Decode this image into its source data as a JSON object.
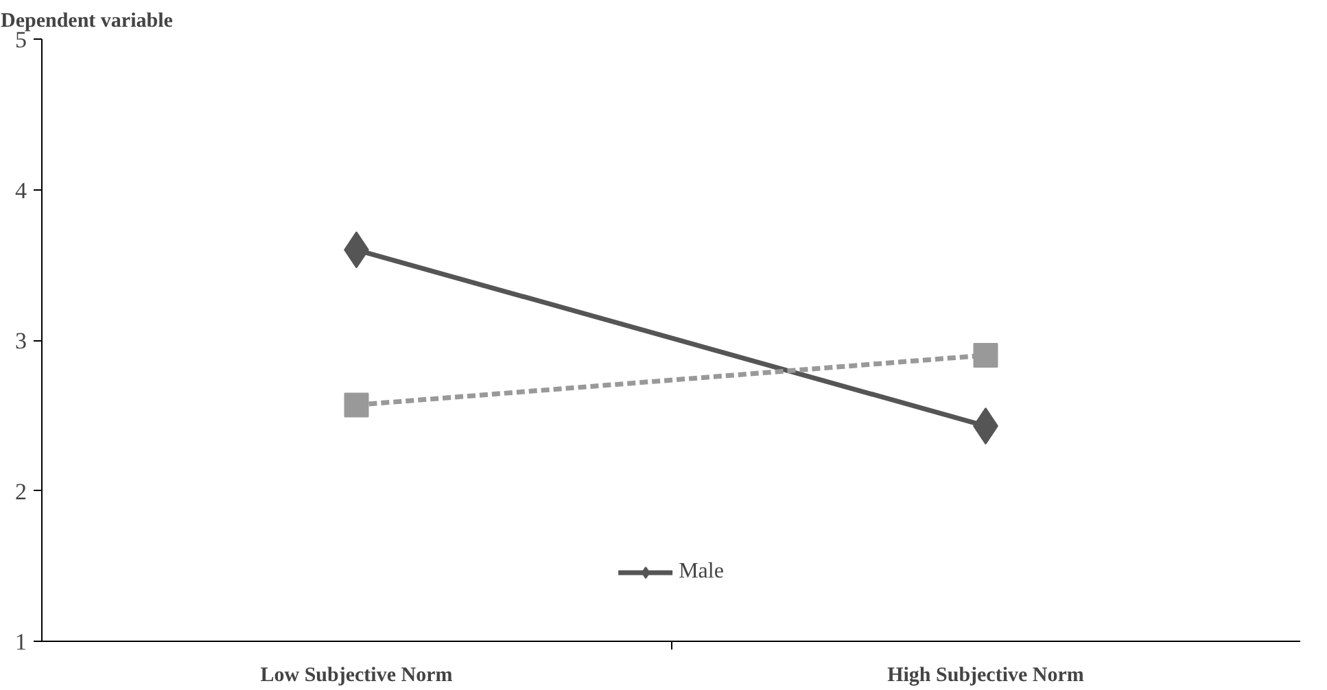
{
  "chart_data": {
    "type": "line",
    "ylabel": "Dependent variable",
    "categories": [
      "Low Subjective Norm",
      "High Subjective Norm"
    ],
    "series": [
      {
        "name": "Male",
        "color": "#555555",
        "values": [
          3.6,
          2.43
        ],
        "marker": "diamond",
        "line_style": "solid"
      },
      {
        "color": "#999999",
        "values": [
          2.57,
          2.9
        ],
        "marker": "square",
        "line_style": "dashed"
      }
    ],
    "ylim": [
      1,
      5
    ],
    "yticks": [
      1,
      2,
      3,
      4,
      5
    ],
    "grid": false,
    "legend": "bottom"
  }
}
